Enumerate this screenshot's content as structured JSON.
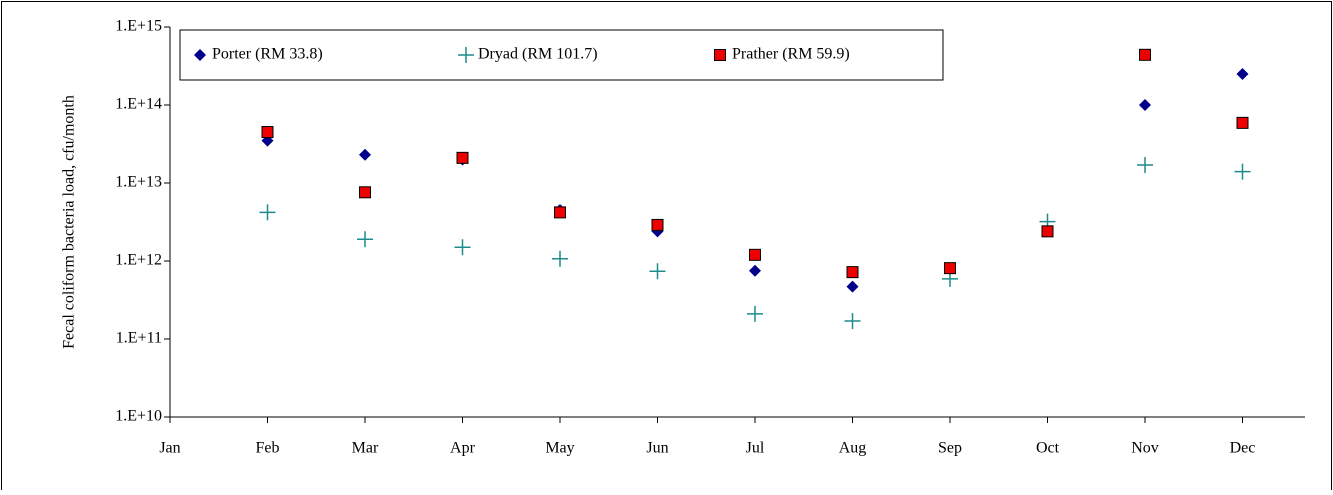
{
  "chart_data": {
    "type": "scatter",
    "y_label": "Fecal coliform bacteria load, cfu/month",
    "categories": [
      "Jan",
      "Feb",
      "Mar",
      "Apr",
      "May",
      "Jun",
      "Jul",
      "Aug",
      "Sep",
      "Oct",
      "Nov",
      "Dec"
    ],
    "log_scale": true,
    "ylim": [
      10000000000.0,
      1000000000000000.0
    ],
    "yticks": [
      {
        "value": 10000000000.0,
        "label": "1.E+10"
      },
      {
        "value": 100000000000.0,
        "label": "1.E+11"
      },
      {
        "value": 1000000000000.0,
        "label": "1.E+12"
      },
      {
        "value": 10000000000000.0,
        "label": "1.E+13"
      },
      {
        "value": 100000000000000.0,
        "label": "1.E+14"
      },
      {
        "value": 1000000000000000.0,
        "label": "1.E+15"
      }
    ],
    "legend": "top",
    "series": [
      {
        "name": "Porter (RM 33.8)",
        "color": "#00008b",
        "marker": "diamond",
        "values": [
          null,
          35000000000000.0,
          23000000000000.0,
          20000000000000.0,
          4500000000000.0,
          2400000000000.0,
          750000000000.0,
          470000000000.0,
          null,
          null,
          100000000000000.0,
          250000000000000.0
        ]
      },
      {
        "name": "Dryad (RM 101.7)",
        "color": "#1e8c8c",
        "marker": "plus",
        "values": [
          null,
          4200000000000.0,
          1900000000000.0,
          1500000000000.0,
          1070000000000.0,
          740000000000.0,
          210000000000.0,
          170000000000.0,
          590000000000.0,
          3200000000000.0,
          17000000000000.0,
          14000000000000.0
        ]
      },
      {
        "name": "Prather (RM 59.9)",
        "color": "#ee0000",
        "marker": "square",
        "values": [
          null,
          45000000000000.0,
          7600000000000.0,
          21000000000000.0,
          4200000000000.0,
          2900000000000.0,
          1200000000000.0,
          720000000000.0,
          810000000000.0,
          2400000000000.0,
          440000000000000.0,
          59000000000000.0
        ]
      }
    ]
  }
}
